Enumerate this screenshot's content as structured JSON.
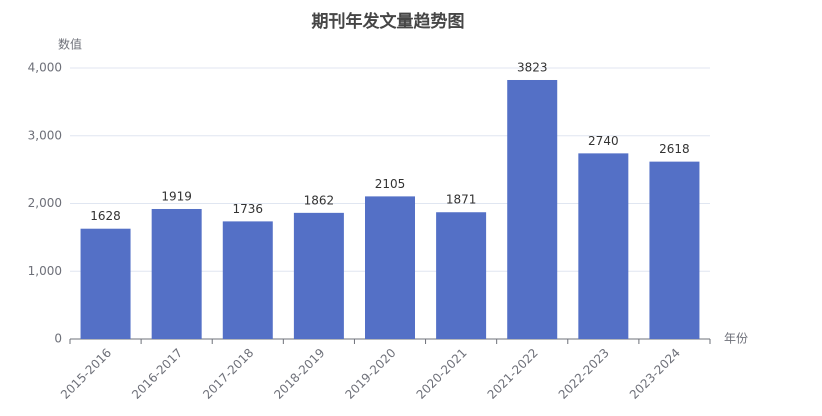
{
  "chart_data": {
    "type": "bar",
    "title": "期刊年发文量趋势图",
    "y_label": "数值",
    "x_label": "年份",
    "categories": [
      "2015-2016",
      "2016-2017",
      "2017-2018",
      "2018-2019",
      "2019-2020",
      "2020-2021",
      "2021-2022",
      "2022-2023",
      "2023-2024"
    ],
    "values": [
      1628,
      1919,
      1736,
      1862,
      2105,
      1871,
      3823,
      2740,
      2618
    ],
    "color": "#5470c6",
    "ylim": [
      0,
      4000
    ],
    "yticks": [
      0,
      {
        "value": 1000,
        "label": "1,000"
      },
      {
        "value": 2000,
        "label": "2,000"
      },
      {
        "value": 3000,
        "label": "3,000"
      },
      {
        "value": 4000,
        "label": "4,000"
      }
    ],
    "grid": true
  }
}
